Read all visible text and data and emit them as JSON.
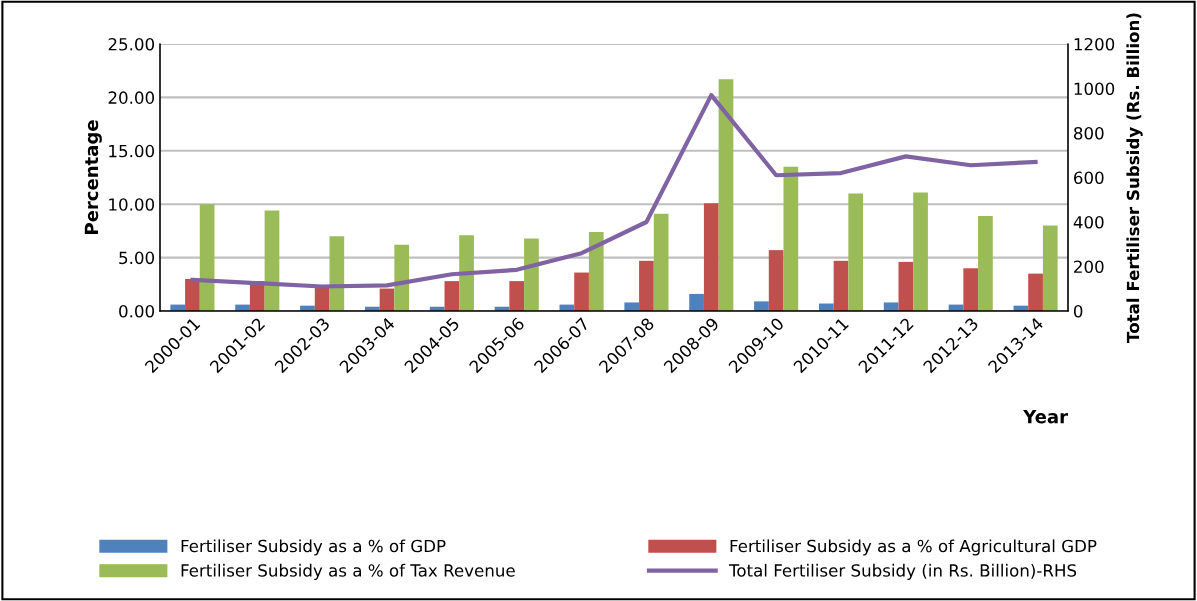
{
  "chart_data": {
    "type": "bar",
    "xlabel": "Year",
    "ylabel": "Percentage",
    "y2label": "Total Fertiliser Subsidy (Rs. Billion)",
    "categories": [
      "2000-01",
      "2001-02",
      "2002-03",
      "2003-04",
      "2004-05",
      "2005-06",
      "2006-07",
      "2007-08",
      "2008-09",
      "2009-10",
      "2010-11",
      "2011-12",
      "2012-13",
      "2013-14"
    ],
    "series": [
      {
        "name": "Fertiliser Subsidy as a % of GDP",
        "color": "#4f81bd",
        "values": [
          0.6,
          0.6,
          0.5,
          0.4,
          0.4,
          0.4,
          0.6,
          0.8,
          1.6,
          0.9,
          0.7,
          0.8,
          0.6,
          0.5
        ]
      },
      {
        "name": "Fertiliser Subsidy as a % of Agricultural GDP",
        "color": "#c0504d",
        "values": [
          3.0,
          2.8,
          2.3,
          2.1,
          2.8,
          2.8,
          3.6,
          4.7,
          10.1,
          5.7,
          4.7,
          4.6,
          4.0,
          3.5
        ]
      },
      {
        "name": "Fertiliser Subsidy as a % of Tax Revenue",
        "color": "#9bbb59",
        "values": [
          10.0,
          9.4,
          7.0,
          6.2,
          7.1,
          6.8,
          7.4,
          9.1,
          21.7,
          13.5,
          11.0,
          11.1,
          8.9,
          8.0
        ]
      },
      {
        "name": "Total Fertiliser Subsidy (in Rs. Billion)-RHS",
        "color": "#7f63a2",
        "type": "line",
        "axis": "y2",
        "values": [
          140,
          125,
          110,
          115,
          165,
          185,
          260,
          400,
          970,
          610,
          620,
          695,
          655,
          670
        ]
      }
    ],
    "ylim": [
      0,
      25
    ],
    "yticks": [
      {
        "value": 0,
        "label": "0.00"
      },
      {
        "value": 5,
        "label": "5.00"
      },
      {
        "value": 10,
        "label": "10.00"
      },
      {
        "value": 15,
        "label": "15.00"
      },
      {
        "value": 20,
        "label": "20.00"
      },
      {
        "value": 25,
        "label": "25.00"
      }
    ],
    "y2lim": [
      0,
      1200
    ],
    "y2ticks": [
      0,
      200,
      400,
      600,
      800,
      1000,
      1200
    ],
    "grid": "y",
    "legend": "bottom",
    "marker": "none"
  }
}
